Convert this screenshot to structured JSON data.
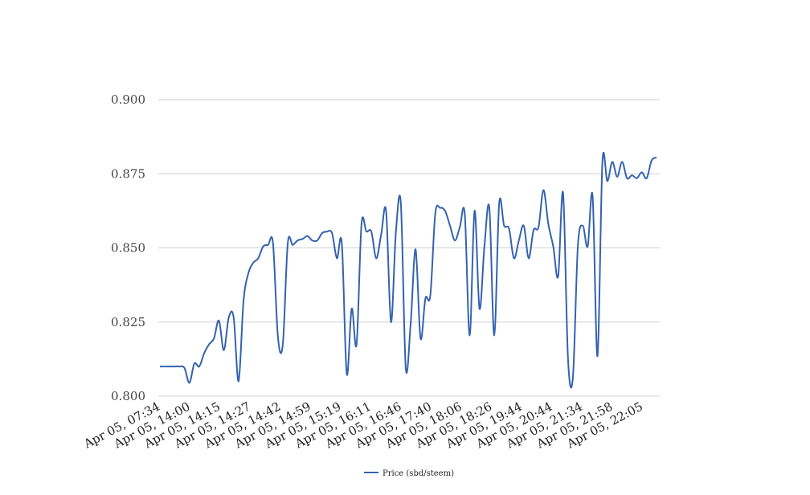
{
  "chart_data": {
    "type": "line",
    "title": "",
    "xlabel": "",
    "ylabel": "",
    "ylim": [
      0.8,
      0.9
    ],
    "yticks": [
      "0.800",
      "0.825",
      "0.850",
      "0.875",
      "0.900"
    ],
    "xtick_labels": [
      "Apr 05, 07:34",
      "Apr 05, 14:00",
      "Apr 05, 14:15",
      "Apr 05, 14:27",
      "Apr 05, 14:42",
      "Apr 05, 14:59",
      "Apr 05, 15:19",
      "Apr 05, 16:11",
      "Apr 05, 16:46",
      "Apr 05, 17:40",
      "Apr 05, 18:06",
      "Apr 05, 18:26",
      "Apr 05, 19:44",
      "Apr 05, 20:44",
      "Apr 05, 21:34",
      "Apr 05, 21:58",
      "Apr 05, 22:05"
    ],
    "grid": true,
    "legend_position": "bottom",
    "series": [
      {
        "name": "Price (sbd/steem)",
        "color": "#3462b0",
        "values": [
          0.81,
          0.81,
          0.81,
          0.81,
          0.81,
          0.8095,
          0.8045,
          0.811,
          0.81,
          0.8145,
          0.8175,
          0.8195,
          0.8255,
          0.8155,
          0.8265,
          0.8265,
          0.805,
          0.832,
          0.8415,
          0.845,
          0.8465,
          0.8505,
          0.851,
          0.8515,
          0.82,
          0.8175,
          0.8515,
          0.851,
          0.8525,
          0.853,
          0.854,
          0.8525,
          0.8525,
          0.855,
          0.8555,
          0.855,
          0.8465,
          0.8515,
          0.8075,
          0.8295,
          0.8175,
          0.858,
          0.8555,
          0.8555,
          0.8465,
          0.8545,
          0.8625,
          0.825,
          0.8555,
          0.865,
          0.8095,
          0.8245,
          0.8495,
          0.8195,
          0.833,
          0.834,
          0.8615,
          0.8635,
          0.8625,
          0.8575,
          0.8525,
          0.857,
          0.8615,
          0.8205,
          0.8625,
          0.8295,
          0.8505,
          0.8635,
          0.8205,
          0.865,
          0.8575,
          0.8565,
          0.8465,
          0.8525,
          0.8575,
          0.8465,
          0.856,
          0.857,
          0.8695,
          0.858,
          0.8505,
          0.8405,
          0.8685,
          0.8125,
          0.8065,
          0.8505,
          0.8575,
          0.8505,
          0.8675,
          0.8135,
          0.879,
          0.8725,
          0.879,
          0.874,
          0.879,
          0.8735,
          0.8745,
          0.8735,
          0.8755,
          0.8735,
          0.8795,
          0.8805
        ]
      }
    ]
  }
}
